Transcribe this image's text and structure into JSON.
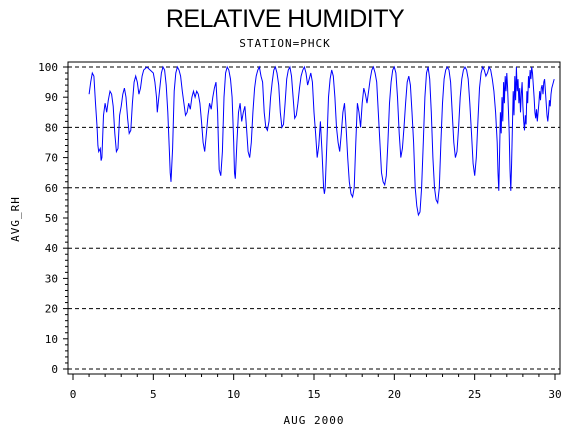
{
  "chart_data": {
    "type": "line",
    "title": "RELATIVE HUMIDITY",
    "subtitle": "STATION=PHCK",
    "xlabel": "AUG 2000",
    "ylabel": "AVG_RH",
    "xlim": [
      0,
      30
    ],
    "ylim": [
      0,
      100
    ],
    "x_ticks": [
      0,
      5,
      10,
      15,
      20,
      25,
      30
    ],
    "y_ticks": [
      0,
      10,
      20,
      30,
      40,
      50,
      60,
      70,
      80,
      90,
      100
    ],
    "y_gridlines": [
      0,
      20,
      40,
      60,
      80,
      100
    ],
    "grid_style": "dashed",
    "line_color": "#0000ff",
    "series": [
      {
        "points": [
          [
            1.0,
            91
          ],
          [
            1.1,
            95
          ],
          [
            1.2,
            98
          ],
          [
            1.3,
            97
          ],
          [
            1.4,
            88
          ],
          [
            1.5,
            80
          ],
          [
            1.55,
            74
          ],
          [
            1.6,
            72
          ],
          [
            1.7,
            73
          ],
          [
            1.75,
            69
          ],
          [
            1.8,
            70
          ],
          [
            1.9,
            84
          ],
          [
            2.0,
            88
          ],
          [
            2.1,
            85
          ],
          [
            2.2,
            89
          ],
          [
            2.3,
            92
          ],
          [
            2.4,
            91
          ],
          [
            2.5,
            87
          ],
          [
            2.6,
            78
          ],
          [
            2.7,
            72
          ],
          [
            2.8,
            73
          ],
          [
            2.9,
            84
          ],
          [
            3.0,
            87
          ],
          [
            3.1,
            91
          ],
          [
            3.2,
            93
          ],
          [
            3.3,
            90
          ],
          [
            3.4,
            83
          ],
          [
            3.5,
            78
          ],
          [
            3.6,
            79
          ],
          [
            3.7,
            88
          ],
          [
            3.8,
            95
          ],
          [
            3.9,
            97
          ],
          [
            4.0,
            95
          ],
          [
            4.1,
            91
          ],
          [
            4.2,
            93
          ],
          [
            4.3,
            97
          ],
          [
            4.4,
            99
          ],
          [
            4.6,
            100
          ],
          [
            4.8,
            99
          ],
          [
            5.0,
            98
          ],
          [
            5.1,
            95
          ],
          [
            5.2,
            90
          ],
          [
            5.25,
            85
          ],
          [
            5.3,
            88
          ],
          [
            5.4,
            93
          ],
          [
            5.5,
            98
          ],
          [
            5.6,
            100
          ],
          [
            5.7,
            99
          ],
          [
            5.8,
            94
          ],
          [
            5.9,
            85
          ],
          [
            6.0,
            72
          ],
          [
            6.05,
            65
          ],
          [
            6.1,
            62
          ],
          [
            6.2,
            73
          ],
          [
            6.3,
            92
          ],
          [
            6.4,
            98
          ],
          [
            6.5,
            100
          ],
          [
            6.6,
            99
          ],
          [
            6.7,
            97
          ],
          [
            6.8,
            92
          ],
          [
            6.9,
            88
          ],
          [
            7.0,
            84
          ],
          [
            7.1,
            85
          ],
          [
            7.2,
            88
          ],
          [
            7.3,
            86
          ],
          [
            7.4,
            90
          ],
          [
            7.5,
            92
          ],
          [
            7.6,
            90
          ],
          [
            7.7,
            92
          ],
          [
            7.8,
            91
          ],
          [
            7.9,
            88
          ],
          [
            8.0,
            82
          ],
          [
            8.1,
            75
          ],
          [
            8.2,
            72
          ],
          [
            8.3,
            78
          ],
          [
            8.4,
            84
          ],
          [
            8.5,
            88
          ],
          [
            8.6,
            86
          ],
          [
            8.7,
            90
          ],
          [
            8.8,
            93
          ],
          [
            8.9,
            95
          ],
          [
            9.0,
            85
          ],
          [
            9.05,
            75
          ],
          [
            9.1,
            66
          ],
          [
            9.2,
            64
          ],
          [
            9.3,
            72
          ],
          [
            9.4,
            90
          ],
          [
            9.5,
            98
          ],
          [
            9.6,
            100
          ],
          [
            9.7,
            99
          ],
          [
            9.8,
            96
          ],
          [
            9.9,
            90
          ],
          [
            10.0,
            75
          ],
          [
            10.05,
            65
          ],
          [
            10.1,
            63
          ],
          [
            10.2,
            75
          ],
          [
            10.3,
            85
          ],
          [
            10.4,
            88
          ],
          [
            10.5,
            82
          ],
          [
            10.6,
            85
          ],
          [
            10.7,
            87
          ],
          [
            10.8,
            80
          ],
          [
            10.9,
            72
          ],
          [
            11.0,
            70
          ],
          [
            11.1,
            75
          ],
          [
            11.2,
            85
          ],
          [
            11.3,
            93
          ],
          [
            11.4,
            97
          ],
          [
            11.5,
            99
          ],
          [
            11.6,
            100
          ],
          [
            11.7,
            97
          ],
          [
            11.8,
            95
          ],
          [
            11.9,
            85
          ],
          [
            12.0,
            80
          ],
          [
            12.1,
            79
          ],
          [
            12.2,
            82
          ],
          [
            12.3,
            90
          ],
          [
            12.4,
            95
          ],
          [
            12.5,
            99
          ],
          [
            12.6,
            100
          ],
          [
            12.7,
            98
          ],
          [
            12.8,
            94
          ],
          [
            12.9,
            85
          ],
          [
            13.0,
            80
          ],
          [
            13.1,
            81
          ],
          [
            13.2,
            88
          ],
          [
            13.3,
            96
          ],
          [
            13.4,
            99
          ],
          [
            13.5,
            100
          ],
          [
            13.6,
            97
          ],
          [
            13.7,
            90
          ],
          [
            13.8,
            83
          ],
          [
            13.9,
            84
          ],
          [
            14.0,
            88
          ],
          [
            14.1,
            93
          ],
          [
            14.2,
            97
          ],
          [
            14.3,
            99
          ],
          [
            14.4,
            100
          ],
          [
            14.5,
            98
          ],
          [
            14.6,
            94
          ],
          [
            14.7,
            96
          ],
          [
            14.8,
            98
          ],
          [
            14.9,
            95
          ],
          [
            15.0,
            85
          ],
          [
            15.1,
            78
          ],
          [
            15.2,
            70
          ],
          [
            15.3,
            74
          ],
          [
            15.4,
            82
          ],
          [
            15.5,
            72
          ],
          [
            15.6,
            60
          ],
          [
            15.65,
            58
          ],
          [
            15.7,
            60
          ],
          [
            15.8,
            75
          ],
          [
            15.9,
            90
          ],
          [
            16.0,
            96
          ],
          [
            16.1,
            99
          ],
          [
            16.2,
            97
          ],
          [
            16.3,
            90
          ],
          [
            16.4,
            80
          ],
          [
            16.5,
            75
          ],
          [
            16.6,
            72
          ],
          [
            16.7,
            78
          ],
          [
            16.8,
            85
          ],
          [
            16.9,
            88
          ],
          [
            17.0,
            80
          ],
          [
            17.1,
            70
          ],
          [
            17.2,
            62
          ],
          [
            17.3,
            58
          ],
          [
            17.4,
            57
          ],
          [
            17.5,
            60
          ],
          [
            17.6,
            75
          ],
          [
            17.7,
            88
          ],
          [
            17.8,
            85
          ],
          [
            17.9,
            80
          ],
          [
            18.0,
            88
          ],
          [
            18.1,
            93
          ],
          [
            18.2,
            91
          ],
          [
            18.3,
            88
          ],
          [
            18.4,
            92
          ],
          [
            18.5,
            96
          ],
          [
            18.6,
            99
          ],
          [
            18.7,
            100
          ],
          [
            18.8,
            98
          ],
          [
            18.9,
            95
          ],
          [
            19.0,
            85
          ],
          [
            19.1,
            75
          ],
          [
            19.2,
            65
          ],
          [
            19.3,
            62
          ],
          [
            19.4,
            61
          ],
          [
            19.5,
            64
          ],
          [
            19.6,
            75
          ],
          [
            19.7,
            88
          ],
          [
            19.8,
            95
          ],
          [
            19.9,
            99
          ],
          [
            20.0,
            100
          ],
          [
            20.1,
            98
          ],
          [
            20.2,
            90
          ],
          [
            20.3,
            78
          ],
          [
            20.4,
            70
          ],
          [
            20.5,
            73
          ],
          [
            20.6,
            80
          ],
          [
            20.7,
            88
          ],
          [
            20.8,
            95
          ],
          [
            20.9,
            97
          ],
          [
            21.0,
            94
          ],
          [
            21.1,
            85
          ],
          [
            21.2,
            75
          ],
          [
            21.3,
            60
          ],
          [
            21.4,
            54
          ],
          [
            21.5,
            51
          ],
          [
            21.6,
            52
          ],
          [
            21.7,
            60
          ],
          [
            21.8,
            75
          ],
          [
            21.9,
            90
          ],
          [
            22.0,
            98
          ],
          [
            22.1,
            100
          ],
          [
            22.2,
            96
          ],
          [
            22.3,
            85
          ],
          [
            22.4,
            70
          ],
          [
            22.5,
            60
          ],
          [
            22.6,
            56
          ],
          [
            22.7,
            55
          ],
          [
            22.8,
            60
          ],
          [
            22.9,
            75
          ],
          [
            23.0,
            88
          ],
          [
            23.1,
            96
          ],
          [
            23.2,
            99
          ],
          [
            23.3,
            100
          ],
          [
            23.4,
            99
          ],
          [
            23.5,
            95
          ],
          [
            23.6,
            85
          ],
          [
            23.7,
            75
          ],
          [
            23.8,
            70
          ],
          [
            23.9,
            72
          ],
          [
            24.0,
            80
          ],
          [
            24.1,
            90
          ],
          [
            24.2,
            96
          ],
          [
            24.3,
            99
          ],
          [
            24.4,
            100
          ],
          [
            24.5,
            99
          ],
          [
            24.6,
            96
          ],
          [
            24.7,
            88
          ],
          [
            24.8,
            78
          ],
          [
            24.9,
            68
          ],
          [
            25.0,
            64
          ],
          [
            25.1,
            70
          ],
          [
            25.2,
            82
          ],
          [
            25.3,
            93
          ],
          [
            25.4,
            98
          ],
          [
            25.5,
            100
          ],
          [
            25.6,
            99
          ],
          [
            25.7,
            97
          ],
          [
            25.8,
            98
          ],
          [
            25.9,
            100
          ],
          [
            26.0,
            99
          ],
          [
            26.1,
            96
          ],
          [
            26.2,
            92
          ],
          [
            26.3,
            85
          ],
          [
            26.4,
            75
          ],
          [
            26.45,
            65
          ],
          [
            26.5,
            59
          ],
          [
            26.55,
            72
          ],
          [
            26.6,
            85
          ],
          [
            26.65,
            78
          ],
          [
            26.7,
            90
          ],
          [
            26.75,
            82
          ],
          [
            26.8,
            95
          ],
          [
            26.85,
            88
          ],
          [
            26.9,
            97
          ],
          [
            26.95,
            92
          ],
          [
            27.0,
            98
          ],
          [
            27.05,
            93
          ],
          [
            27.1,
            86
          ],
          [
            27.15,
            78
          ],
          [
            27.2,
            66
          ],
          [
            27.25,
            59
          ],
          [
            27.3,
            68
          ],
          [
            27.35,
            80
          ],
          [
            27.4,
            92
          ],
          [
            27.45,
            84
          ],
          [
            27.5,
            97
          ],
          [
            27.55,
            89
          ],
          [
            27.6,
            100
          ],
          [
            27.65,
            92
          ],
          [
            27.7,
            96
          ],
          [
            27.75,
            88
          ],
          [
            27.8,
            93
          ],
          [
            27.85,
            85
          ],
          [
            27.9,
            91
          ],
          [
            27.95,
            95
          ],
          [
            28.0,
            87
          ],
          [
            28.05,
            82
          ],
          [
            28.1,
            79
          ],
          [
            28.15,
            84
          ],
          [
            28.2,
            81
          ],
          [
            28.25,
            92
          ],
          [
            28.3,
            88
          ],
          [
            28.35,
            97
          ],
          [
            28.4,
            93
          ],
          [
            28.45,
            99
          ],
          [
            28.5,
            96
          ],
          [
            28.55,
            100
          ],
          [
            28.6,
            98
          ],
          [
            28.65,
            94
          ],
          [
            28.7,
            90
          ],
          [
            28.75,
            85
          ],
          [
            28.8,
            83
          ],
          [
            28.85,
            86
          ],
          [
            28.9,
            82
          ],
          [
            28.95,
            85
          ],
          [
            29.0,
            88
          ],
          [
            29.05,
            92
          ],
          [
            29.1,
            89
          ],
          [
            29.15,
            93
          ],
          [
            29.2,
            94
          ],
          [
            29.25,
            91
          ],
          [
            29.3,
            95
          ],
          [
            29.35,
            96
          ],
          [
            29.4,
            92
          ],
          [
            29.45,
            88
          ],
          [
            29.5,
            84
          ],
          [
            29.55,
            82
          ],
          [
            29.6,
            85
          ],
          [
            29.65,
            89
          ],
          [
            29.7,
            87
          ],
          [
            29.75,
            91
          ],
          [
            29.8,
            93
          ],
          [
            29.85,
            94
          ],
          [
            29.9,
            95
          ],
          [
            29.95,
            96
          ]
        ]
      }
    ]
  }
}
